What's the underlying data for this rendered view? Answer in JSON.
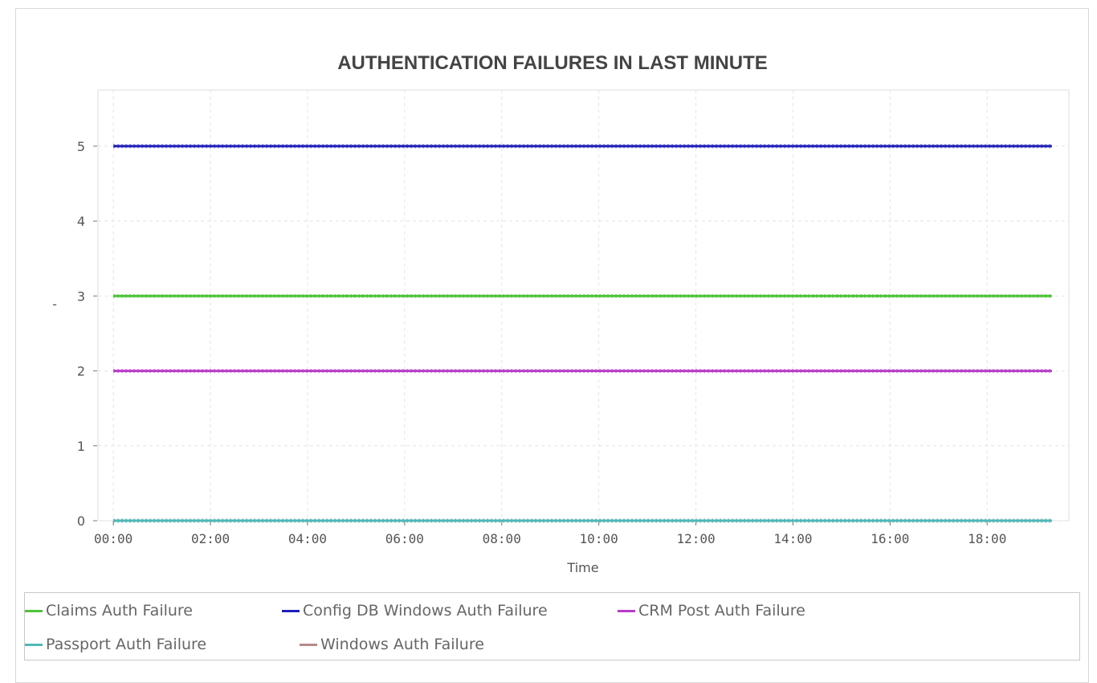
{
  "chart_data": {
    "type": "line",
    "title": "AUTHENTICATION FAILURES IN LAST MINUTE",
    "xlabel": "Time",
    "ylabel": "-",
    "x_ticks": [
      "00:00",
      "02:00",
      "04:00",
      "06:00",
      "08:00",
      "10:00",
      "12:00",
      "14:00",
      "16:00",
      "18:00"
    ],
    "y_ticks": [
      0,
      1,
      2,
      3,
      4,
      5
    ],
    "xlim": [
      "-00:19",
      "19:41"
    ],
    "x_data_range": [
      "00:00",
      "19:20"
    ],
    "ylim": [
      0,
      5.75
    ],
    "grid": true,
    "legend_position": "bottom",
    "series": [
      {
        "name": "Claims Auth Failure",
        "color": "#4fc43a",
        "value": 3
      },
      {
        "name": "Config DB Windows Auth Failure",
        "color": "#1f1fb8",
        "value": 5
      },
      {
        "name": "CRM Post Auth Failure",
        "color": "#b83cc8",
        "value": 2
      },
      {
        "name": "Passport Auth Failure",
        "color": "#4fb8b8",
        "value": 0
      },
      {
        "name": "Windows Auth Failure",
        "color": "#b88a8a",
        "value": 0
      }
    ]
  }
}
